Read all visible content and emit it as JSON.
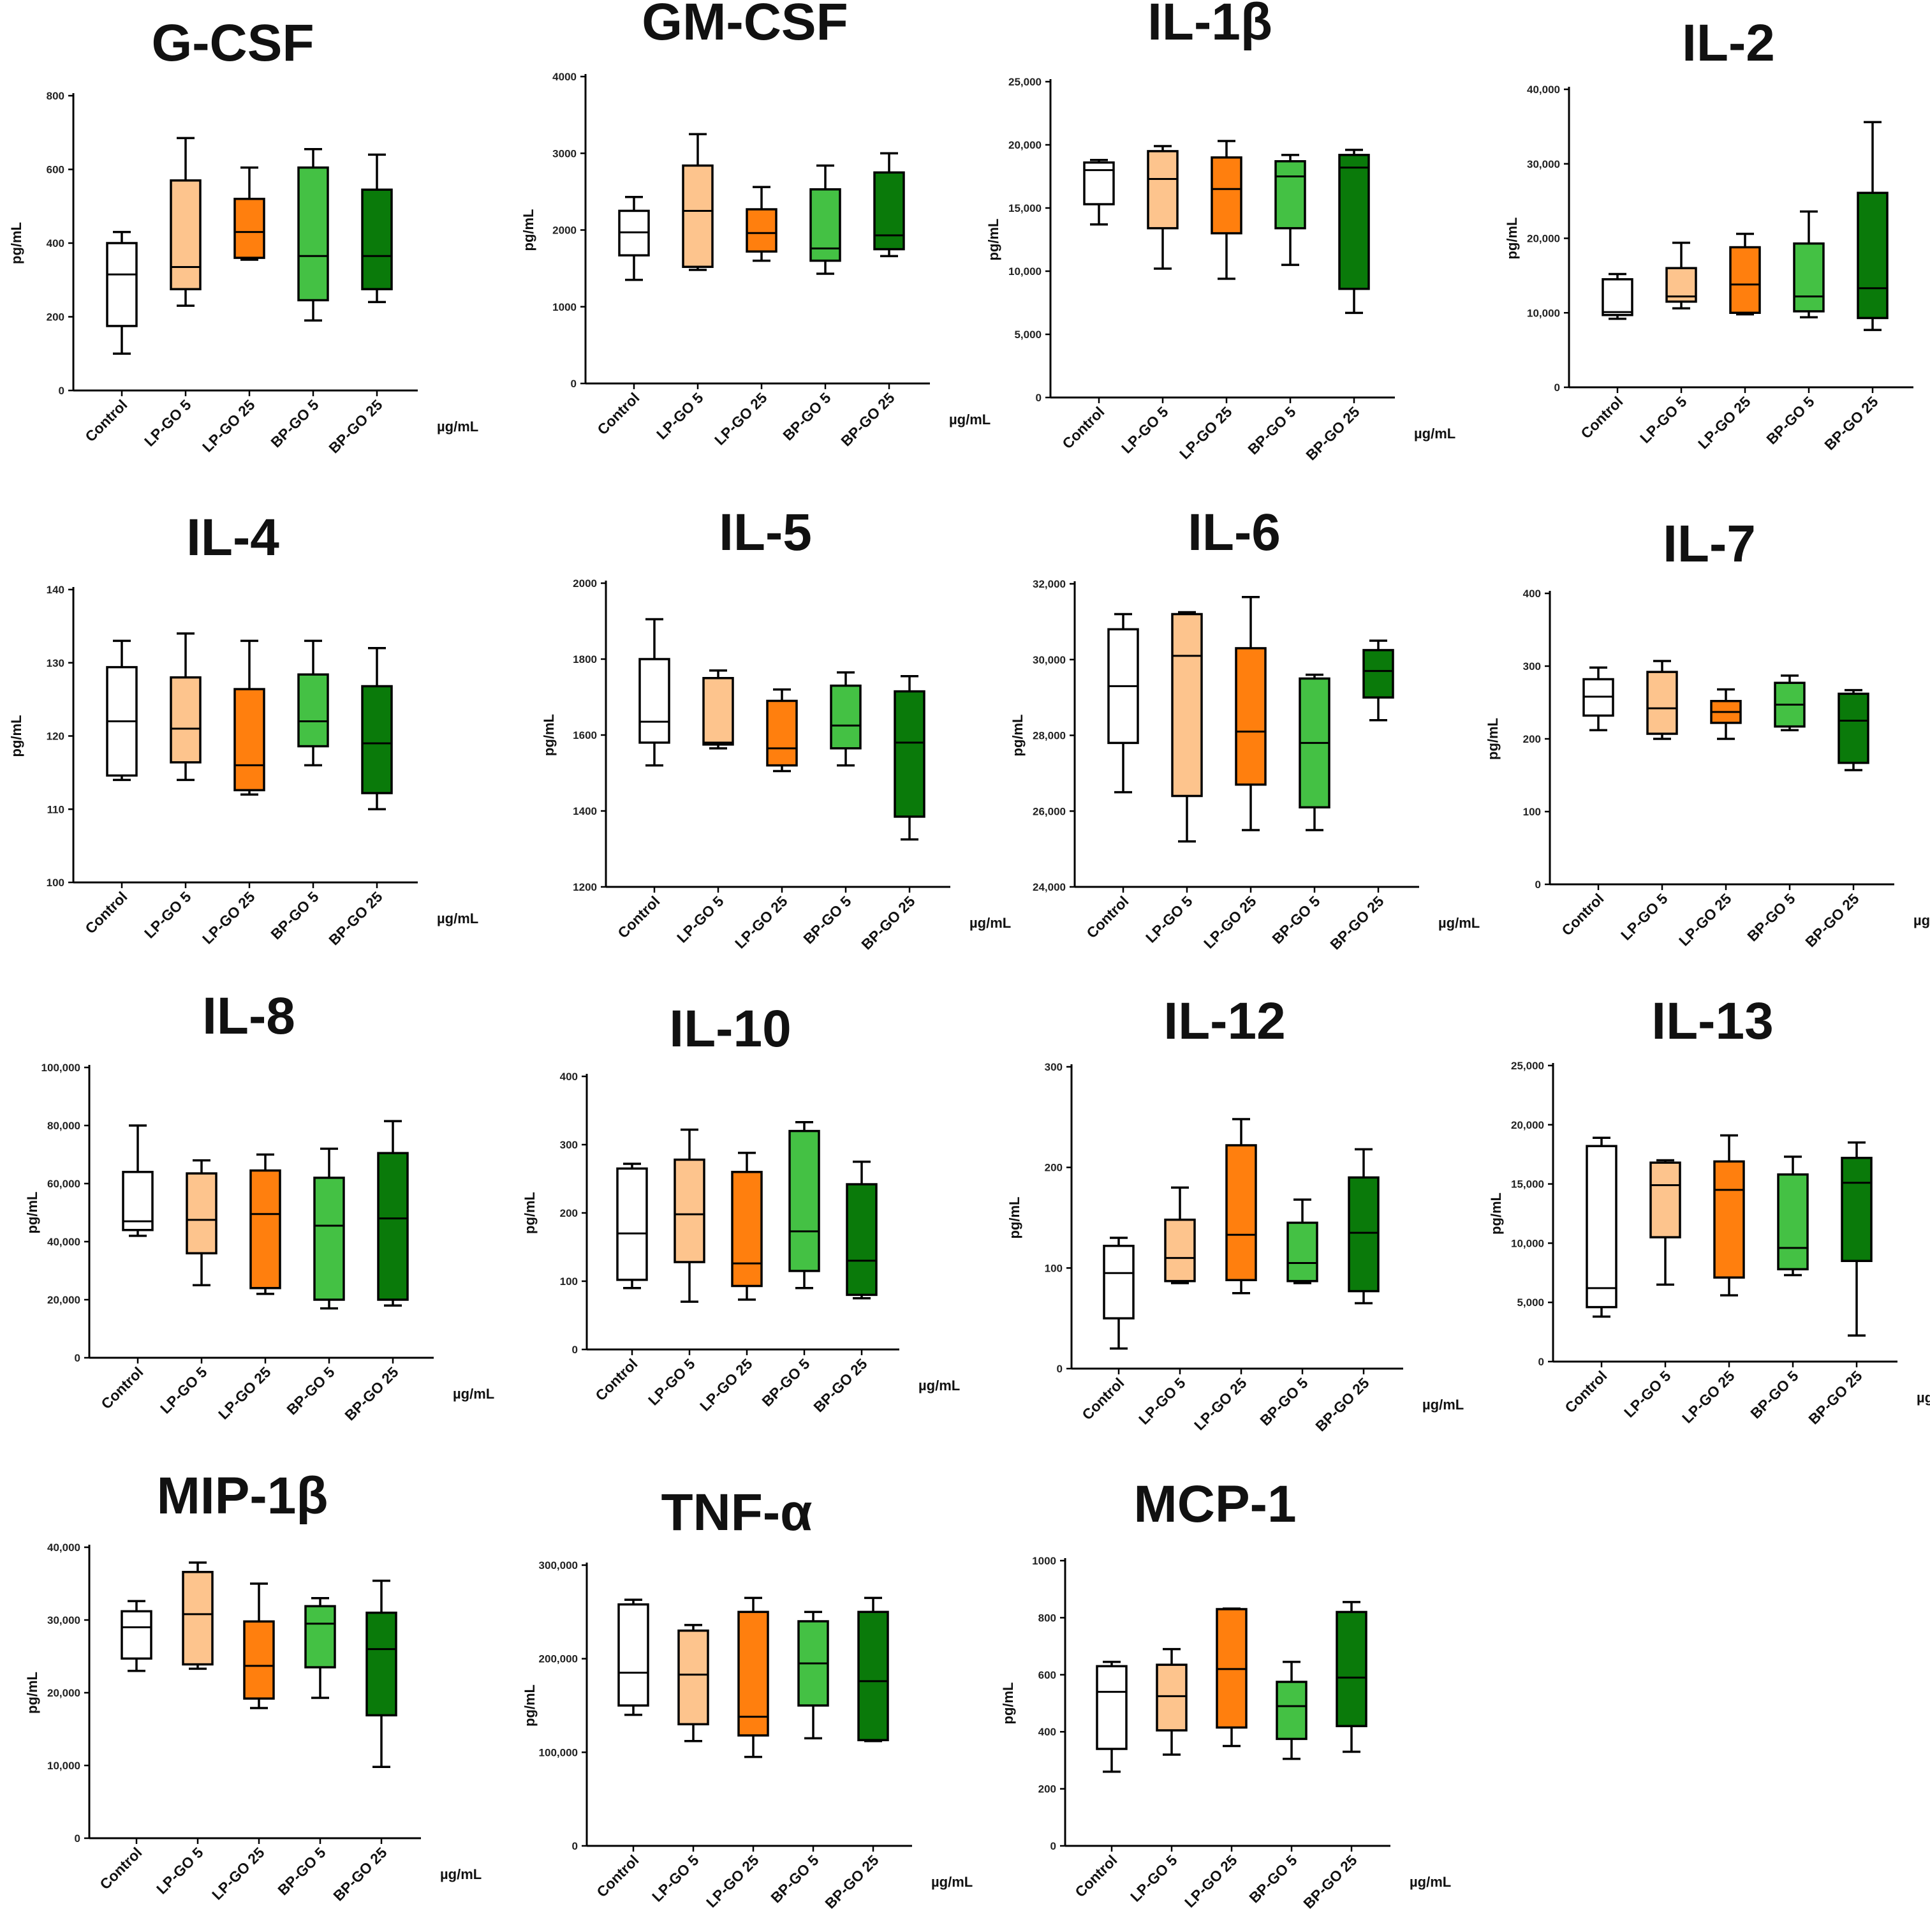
{
  "groups": [
    {
      "label": "Control",
      "color": "#ffffff"
    },
    {
      "label": "LP-GO 5",
      "color": "#fdc48d"
    },
    {
      "label": "LP-GO 25",
      "color": "#ff7f0e"
    },
    {
      "label": "BP-GO 5",
      "color": "#44c144"
    },
    {
      "label": "BP-GO 25",
      "color": "#0a7a0a"
    }
  ],
  "chart_data": [
    {
      "type": "box",
      "title": "G-CSF",
      "ylabel": "pg/mL",
      "xunit": "µg/mL",
      "ylim": [
        0,
        800
      ],
      "yticks": [
        0,
        200,
        400,
        600,
        800
      ],
      "tick_labels": [
        "0",
        "200",
        "400",
        "600",
        "800"
      ],
      "categories": [
        "Control",
        "LP-GO 5",
        "LP-GO 25",
        "BP-GO 5",
        "BP-GO 25"
      ],
      "boxes": [
        {
          "min": 100,
          "q1": 175,
          "median": 315,
          "q3": 400,
          "max": 430
        },
        {
          "min": 230,
          "q1": 275,
          "median": 335,
          "q3": 570,
          "max": 685
        },
        {
          "min": 355,
          "q1": 360,
          "median": 430,
          "q3": 520,
          "max": 605
        },
        {
          "min": 190,
          "q1": 245,
          "median": 365,
          "q3": 605,
          "max": 655
        },
        {
          "min": 240,
          "q1": 275,
          "median": 365,
          "q3": 545,
          "max": 640
        }
      ]
    },
    {
      "type": "box",
      "title": "GM-CSF",
      "ylabel": "pg/mL",
      "xunit": "µg/mL",
      "ylim": [
        0,
        4000
      ],
      "yticks": [
        0,
        1000,
        2000,
        3000,
        4000
      ],
      "tick_labels": [
        "0",
        "1000",
        "2000",
        "3000",
        "4000"
      ],
      "categories": [
        "Control",
        "LP-GO 5",
        "LP-GO 25",
        "BP-GO 5",
        "BP-GO 25"
      ],
      "boxes": [
        {
          "min": 1350,
          "q1": 1670,
          "median": 1970,
          "q3": 2250,
          "max": 2430
        },
        {
          "min": 1480,
          "q1": 1520,
          "median": 2250,
          "q3": 2840,
          "max": 3250
        },
        {
          "min": 1600,
          "q1": 1720,
          "median": 1960,
          "q3": 2270,
          "max": 2560
        },
        {
          "min": 1430,
          "q1": 1600,
          "median": 1760,
          "q3": 2530,
          "max": 2840
        },
        {
          "min": 1660,
          "q1": 1750,
          "median": 1930,
          "q3": 2750,
          "max": 3000
        }
      ]
    },
    {
      "type": "box",
      "title": "IL-1β",
      "ylabel": "pg/mL",
      "xunit": "µg/mL",
      "ylim": [
        0,
        25000
      ],
      "yticks": [
        0,
        5000,
        10000,
        15000,
        20000,
        25000
      ],
      "tick_labels": [
        "0",
        "5,000",
        "10,000",
        "15,000",
        "20,000",
        "25,000"
      ],
      "categories": [
        "Control",
        "LP-GO 5",
        "LP-GO 25",
        "BP-GO 5",
        "BP-GO 25"
      ],
      "boxes": [
        {
          "min": 13700,
          "q1": 15300,
          "median": 18000,
          "q3": 18600,
          "max": 18800
        },
        {
          "min": 10200,
          "q1": 13400,
          "median": 17300,
          "q3": 19500,
          "max": 19900
        },
        {
          "min": 9400,
          "q1": 13000,
          "median": 16500,
          "q3": 19000,
          "max": 20300
        },
        {
          "min": 10500,
          "q1": 13400,
          "median": 17500,
          "q3": 18700,
          "max": 19200
        },
        {
          "min": 6700,
          "q1": 8600,
          "median": 18200,
          "q3": 19200,
          "max": 19600
        }
      ]
    },
    {
      "type": "box",
      "title": "IL-2",
      "ylabel": "pg/mL",
      "xunit": "µg/mL",
      "ylim": [
        0,
        40000
      ],
      "yticks": [
        0,
        10000,
        20000,
        30000,
        40000
      ],
      "tick_labels": [
        "0",
        "10,000",
        "20,000",
        "30,000",
        "40,000"
      ],
      "categories": [
        "Control",
        "LP-GO 5",
        "LP-GO 25",
        "BP-GO 5",
        "BP-GO 25"
      ],
      "boxes": [
        {
          "min": 9200,
          "q1": 9700,
          "median": 10100,
          "q3": 14500,
          "max": 15200
        },
        {
          "min": 10600,
          "q1": 11500,
          "median": 12200,
          "q3": 16000,
          "max": 19400
        },
        {
          "min": 9800,
          "q1": 10000,
          "median": 13800,
          "q3": 18800,
          "max": 20600
        },
        {
          "min": 9400,
          "q1": 10200,
          "median": 12200,
          "q3": 19300,
          "max": 23600
        },
        {
          "min": 7700,
          "q1": 9300,
          "median": 13300,
          "q3": 26100,
          "max": 35600
        }
      ]
    },
    {
      "type": "box",
      "title": "IL-4",
      "ylabel": "pg/mL",
      "xunit": "µg/mL",
      "ylim": [
        100,
        140
      ],
      "yticks": [
        100,
        110,
        120,
        130,
        140
      ],
      "tick_labels": [
        "100",
        "110",
        "120",
        "130",
        "140"
      ],
      "categories": [
        "Control",
        "LP-GO 5",
        "LP-GO 25",
        "BP-GO 5",
        "BP-GO 25"
      ],
      "boxes": [
        {
          "min": 114,
          "q1": 114.6,
          "median": 122,
          "q3": 129.4,
          "max": 133
        },
        {
          "min": 114,
          "q1": 116.4,
          "median": 121,
          "q3": 128,
          "max": 134
        },
        {
          "min": 112,
          "q1": 112.6,
          "median": 116,
          "q3": 126.4,
          "max": 133
        },
        {
          "min": 116,
          "q1": 118.6,
          "median": 122,
          "q3": 128.4,
          "max": 133
        },
        {
          "min": 110,
          "q1": 112.2,
          "median": 119,
          "q3": 126.8,
          "max": 132
        }
      ]
    },
    {
      "type": "box",
      "title": "IL-5",
      "ylabel": "pg/mL",
      "xunit": "µg/mL",
      "ylim": [
        1200,
        2000
      ],
      "yticks": [
        1200,
        1400,
        1600,
        1800,
        2000
      ],
      "tick_labels": [
        "1200",
        "1400",
        "1600",
        "1800",
        "2000"
      ],
      "categories": [
        "Control",
        "LP-GO 5",
        "LP-GO 25",
        "BP-GO 5",
        "BP-GO 25"
      ],
      "boxes": [
        {
          "min": 1520,
          "q1": 1580,
          "median": 1635,
          "q3": 1800,
          "max": 1905
        },
        {
          "min": 1565,
          "q1": 1575,
          "median": 1580,
          "q3": 1750,
          "max": 1770
        },
        {
          "min": 1505,
          "q1": 1520,
          "median": 1565,
          "q3": 1690,
          "max": 1720
        },
        {
          "min": 1520,
          "q1": 1565,
          "median": 1625,
          "q3": 1730,
          "max": 1765
        },
        {
          "min": 1325,
          "q1": 1385,
          "median": 1580,
          "q3": 1715,
          "max": 1755
        }
      ]
    },
    {
      "type": "box",
      "title": "IL-6",
      "ylabel": "pg/mL",
      "xunit": "µg/mL",
      "ylim": [
        24000,
        32000
      ],
      "yticks": [
        24000,
        26000,
        28000,
        30000,
        32000
      ],
      "tick_labels": [
        "24,000",
        "26,000",
        "28,000",
        "30,000",
        "32,000"
      ],
      "categories": [
        "Control",
        "LP-GO 5",
        "LP-GO 25",
        "BP-GO 5",
        "BP-GO 25"
      ],
      "boxes": [
        {
          "min": 26500,
          "q1": 27800,
          "median": 29300,
          "q3": 30800,
          "max": 31200
        },
        {
          "min": 25200,
          "q1": 26400,
          "median": 30100,
          "q3": 31200,
          "max": 31250
        },
        {
          "min": 25500,
          "q1": 26700,
          "median": 28100,
          "q3": 30300,
          "max": 31650
        },
        {
          "min": 25500,
          "q1": 26100,
          "median": 27800,
          "q3": 29500,
          "max": 29600
        },
        {
          "min": 28400,
          "q1": 29000,
          "median": 29700,
          "q3": 30250,
          "max": 30500
        }
      ]
    },
    {
      "type": "box",
      "title": "IL-7",
      "ylabel": "pg/mL",
      "xunit": "µg/mL",
      "ylim": [
        0,
        400
      ],
      "yticks": [
        0,
        100,
        200,
        300,
        400
      ],
      "tick_labels": [
        "0",
        "100",
        "200",
        "300",
        "400"
      ],
      "categories": [
        "Control",
        "LP-GO 5",
        "LP-GO 25",
        "BP-GO 5",
        "BP-GO 25"
      ],
      "boxes": [
        {
          "min": 212,
          "q1": 232,
          "median": 258,
          "q3": 282,
          "max": 298
        },
        {
          "min": 200,
          "q1": 207,
          "median": 242,
          "q3": 292,
          "max": 307
        },
        {
          "min": 200,
          "q1": 222,
          "median": 237,
          "q3": 252,
          "max": 268
        },
        {
          "min": 212,
          "q1": 217,
          "median": 247,
          "q3": 277,
          "max": 287
        },
        {
          "min": 157,
          "q1": 167,
          "median": 225,
          "q3": 262,
          "max": 267
        }
      ]
    },
    {
      "type": "box",
      "title": "IL-8",
      "ylabel": "pg/mL",
      "xunit": "µg/mL",
      "ylim": [
        0,
        100000
      ],
      "yticks": [
        0,
        20000,
        40000,
        60000,
        80000,
        100000
      ],
      "tick_labels": [
        "0",
        "20,000",
        "40,000",
        "60,000",
        "80,000",
        "100,000"
      ],
      "categories": [
        "Control",
        "LP-GO 5",
        "LP-GO 25",
        "BP-GO 5",
        "BP-GO 25"
      ],
      "boxes": [
        {
          "min": 42000,
          "q1": 44000,
          "median": 47000,
          "q3": 64000,
          "max": 80000
        },
        {
          "min": 25000,
          "q1": 36000,
          "median": 47500,
          "q3": 63500,
          "max": 68000
        },
        {
          "min": 22000,
          "q1": 24000,
          "median": 49500,
          "q3": 64500,
          "max": 70000
        },
        {
          "min": 17000,
          "q1": 20000,
          "median": 45500,
          "q3": 62000,
          "max": 72000
        },
        {
          "min": 18000,
          "q1": 20000,
          "median": 48000,
          "q3": 70500,
          "max": 81500
        }
      ]
    },
    {
      "type": "box",
      "title": "IL-10",
      "ylabel": "pg/mL",
      "xunit": "µg/mL",
      "ylim": [
        0,
        400
      ],
      "yticks": [
        0,
        100,
        200,
        300,
        400
      ],
      "tick_labels": [
        "0",
        "100",
        "200",
        "300",
        "400"
      ],
      "categories": [
        "Control",
        "LP-GO 5",
        "LP-GO 25",
        "BP-GO 5",
        "BP-GO 25"
      ],
      "boxes": [
        {
          "min": 90,
          "q1": 102,
          "median": 170,
          "q3": 265,
          "max": 272
        },
        {
          "min": 70,
          "q1": 128,
          "median": 198,
          "q3": 278,
          "max": 322
        },
        {
          "min": 73,
          "q1": 93,
          "median": 126,
          "q3": 260,
          "max": 288
        },
        {
          "min": 90,
          "q1": 115,
          "median": 173,
          "q3": 320,
          "max": 333
        },
        {
          "min": 75,
          "q1": 80,
          "median": 130,
          "q3": 242,
          "max": 275
        }
      ]
    },
    {
      "type": "box",
      "title": "IL-12",
      "ylabel": "pg/mL",
      "xunit": "µg/mL",
      "ylim": [
        0,
        300
      ],
      "yticks": [
        0,
        100,
        200,
        300
      ],
      "tick_labels": [
        "0",
        "100",
        "200",
        "300"
      ],
      "categories": [
        "Control",
        "LP-GO 5",
        "LP-GO 25",
        "BP-GO 5",
        "BP-GO 25"
      ],
      "boxes": [
        {
          "min": 20,
          "q1": 50,
          "median": 95,
          "q3": 122,
          "max": 130
        },
        {
          "min": 85,
          "q1": 87,
          "median": 110,
          "q3": 148,
          "max": 180
        },
        {
          "min": 75,
          "q1": 88,
          "median": 133,
          "q3": 222,
          "max": 248
        },
        {
          "min": 85,
          "q1": 87,
          "median": 105,
          "q3": 145,
          "max": 168
        },
        {
          "min": 65,
          "q1": 77,
          "median": 135,
          "q3": 190,
          "max": 218
        }
      ]
    },
    {
      "type": "box",
      "title": "IL-13",
      "ylabel": "pg/mL",
      "xunit": "µg/mL",
      "ylim": [
        0,
        25000
      ],
      "yticks": [
        0,
        5000,
        10000,
        15000,
        20000,
        25000
      ],
      "tick_labels": [
        "0",
        "5,000",
        "10,000",
        "15,000",
        "20,000",
        "25,000"
      ],
      "categories": [
        "Control",
        "LP-GO 5",
        "LP-GO 25",
        "BP-GO 5",
        "BP-GO 25"
      ],
      "boxes": [
        {
          "min": 3800,
          "q1": 4600,
          "median": 6200,
          "q3": 18200,
          "max": 18900
        },
        {
          "min": 6500,
          "q1": 10500,
          "median": 14900,
          "q3": 16800,
          "max": 17000
        },
        {
          "min": 5600,
          "q1": 7100,
          "median": 14500,
          "q3": 16900,
          "max": 19100
        },
        {
          "min": 7300,
          "q1": 7800,
          "median": 9600,
          "q3": 15800,
          "max": 17300
        },
        {
          "min": 2200,
          "q1": 8500,
          "median": 15100,
          "q3": 17200,
          "max": 18500
        }
      ]
    },
    {
      "type": "box",
      "title": "MIP-1β",
      "ylabel": "pg/mL",
      "xunit": "µg/mL",
      "ylim": [
        0,
        40000
      ],
      "yticks": [
        0,
        10000,
        20000,
        30000,
        40000
      ],
      "tick_labels": [
        "0",
        "10,000",
        "20,000",
        "30,000",
        "40,000"
      ],
      "categories": [
        "Control",
        "LP-GO 5",
        "LP-GO 25",
        "BP-GO 5",
        "BP-GO 25"
      ],
      "boxes": [
        {
          "min": 23000,
          "q1": 24700,
          "median": 29000,
          "q3": 31200,
          "max": 32600
        },
        {
          "min": 23300,
          "q1": 23900,
          "median": 30800,
          "q3": 36600,
          "max": 37900
        },
        {
          "min": 17900,
          "q1": 19200,
          "median": 23700,
          "q3": 29800,
          "max": 35000
        },
        {
          "min": 19300,
          "q1": 23500,
          "median": 29500,
          "q3": 31900,
          "max": 33000
        },
        {
          "min": 9800,
          "q1": 16900,
          "median": 26000,
          "q3": 31000,
          "max": 35400
        }
      ]
    },
    {
      "type": "box",
      "title": "TNF-α",
      "ylabel": "pg/mL",
      "xunit": "µg/mL",
      "ylim": [
        0,
        300000
      ],
      "yticks": [
        0,
        100000,
        200000,
        300000
      ],
      "tick_labels": [
        "0",
        "100,000",
        "200,000",
        "300,000"
      ],
      "categories": [
        "Control",
        "LP-GO 5",
        "LP-GO 25",
        "BP-GO 5",
        "BP-GO 25"
      ],
      "boxes": [
        {
          "min": 140000,
          "q1": 150000,
          "median": 185000,
          "q3": 258000,
          "max": 263000
        },
        {
          "min": 112000,
          "q1": 130000,
          "median": 183000,
          "q3": 230000,
          "max": 236000
        },
        {
          "min": 95000,
          "q1": 118000,
          "median": 138000,
          "q3": 250000,
          "max": 265000
        },
        {
          "min": 115000,
          "q1": 150000,
          "median": 195000,
          "q3": 240000,
          "max": 250000
        },
        {
          "min": 112000,
          "q1": 113000,
          "median": 176000,
          "q3": 250000,
          "max": 265000
        }
      ]
    },
    {
      "type": "box",
      "title": "MCP-1",
      "ylabel": "pg/mL",
      "xunit": "µg/mL",
      "ylim": [
        0,
        1000
      ],
      "yticks": [
        0,
        200,
        400,
        600,
        800,
        1000
      ],
      "tick_labels": [
        "0",
        "200",
        "400",
        "600",
        "800",
        "1000"
      ],
      "categories": [
        "Control",
        "LP-GO 5",
        "LP-GO 25",
        "BP-GO 5",
        "BP-GO 25"
      ],
      "boxes": [
        {
          "min": 260,
          "q1": 340,
          "median": 540,
          "q3": 630,
          "max": 645
        },
        {
          "min": 320,
          "q1": 405,
          "median": 525,
          "q3": 635,
          "max": 690
        },
        {
          "min": 350,
          "q1": 415,
          "median": 620,
          "q3": 830,
          "max": 832
        },
        {
          "min": 305,
          "q1": 375,
          "median": 490,
          "q3": 575,
          "max": 645
        },
        {
          "min": 330,
          "q1": 420,
          "median": 590,
          "q3": 820,
          "max": 855
        }
      ]
    }
  ]
}
